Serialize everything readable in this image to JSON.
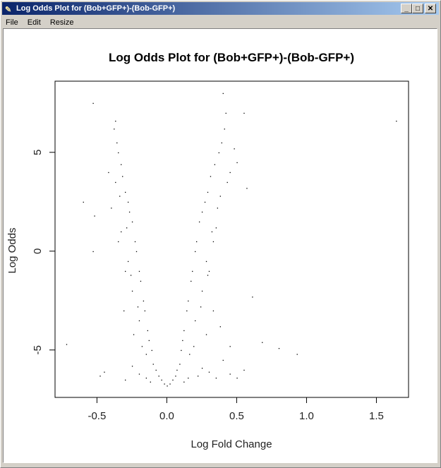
{
  "window": {
    "title": "Log Odds Plot for (Bob+GFP+)-(Bob-GFP+)",
    "icon": "feather-icon",
    "controls": [
      "minimize",
      "maximize",
      "close"
    ],
    "title_gradient": [
      "#0a246a",
      "#a6caf0"
    ]
  },
  "menu": {
    "items": [
      "File",
      "Edit",
      "Resize"
    ]
  },
  "chart_data": {
    "type": "scatter",
    "title": "Log Odds Plot for (Bob+GFP+)-(Bob-GFP+)",
    "xlabel": "Log Fold Change",
    "ylabel": "Log Odds",
    "xlim": [
      -0.8,
      1.73
    ],
    "ylim": [
      -7.4,
      8.6
    ],
    "xticks": [
      "-0.5",
      "0.0",
      "0.5",
      "1.0",
      "1.5"
    ],
    "xtick_values": [
      -0.5,
      0,
      0.5,
      1.0,
      1.5
    ],
    "yticks": [
      "-5",
      "0",
      "5"
    ],
    "ytick_values": [
      -5,
      0,
      5
    ],
    "grid": false,
    "point_color": "#000000",
    "points": [
      [
        0,
        -6.8
      ],
      [
        -0.02,
        -6.7
      ],
      [
        0.02,
        -6.7
      ],
      [
        -0.04,
        -6.5
      ],
      [
        0.04,
        -6.5
      ],
      [
        -0.06,
        -6.3
      ],
      [
        0.06,
        -6.3
      ],
      [
        -0.08,
        -6.0
      ],
      [
        0.07,
        -6.0
      ],
      [
        -0.1,
        -5.7
      ],
      [
        0.09,
        -5.7
      ],
      [
        -0.15,
        -6.4
      ],
      [
        0.15,
        -6.4
      ],
      [
        -0.2,
        -6.2
      ],
      [
        0.22,
        -6.3
      ],
      [
        0.3,
        -6.1
      ],
      [
        0.35,
        -6.4
      ],
      [
        -0.3,
        -6.5
      ],
      [
        0.45,
        -6.2
      ],
      [
        0.5,
        -6.4
      ],
      [
        -0.45,
        -6.1
      ],
      [
        0.12,
        -6.6
      ],
      [
        -0.12,
        -6.6
      ],
      [
        0.25,
        -5.9
      ],
      [
        -0.25,
        -5.8
      ],
      [
        -0.11,
        -5.0
      ],
      [
        -0.13,
        -4.5
      ],
      [
        -0.14,
        -4.0
      ],
      [
        -0.16,
        -3.0
      ],
      [
        -0.17,
        -2.5
      ],
      [
        -0.19,
        -1.5
      ],
      [
        -0.2,
        -1.0
      ],
      [
        -0.22,
        0
      ],
      [
        -0.23,
        0.5
      ],
      [
        -0.25,
        1.5
      ],
      [
        -0.27,
        2.0
      ],
      [
        -0.28,
        2.5
      ],
      [
        -0.3,
        3.0
      ],
      [
        -0.32,
        3.8
      ],
      [
        -0.33,
        4.4
      ],
      [
        -0.35,
        5.0
      ],
      [
        -0.36,
        5.5
      ],
      [
        -0.38,
        6.2
      ],
      [
        -0.2,
        -3.5
      ],
      [
        -0.25,
        -2.0
      ],
      [
        -0.3,
        -1.0
      ],
      [
        -0.35,
        0.5
      ],
      [
        -0.28,
        -0.5
      ],
      [
        -0.33,
        1.0
      ],
      [
        -0.4,
        2.2
      ],
      [
        -0.31,
        -3.0
      ],
      [
        -0.24,
        -4.2
      ],
      [
        -0.15,
        -5.2
      ],
      [
        -0.18,
        -4.8
      ],
      [
        -0.21,
        -2.8
      ],
      [
        -0.26,
        -1.2
      ],
      [
        -0.29,
        1.2
      ],
      [
        -0.34,
        2.8
      ],
      [
        -0.37,
        3.5
      ],
      [
        -0.42,
        4.0
      ],
      [
        0.1,
        -5.0
      ],
      [
        0.11,
        -4.5
      ],
      [
        0.12,
        -4.0
      ],
      [
        0.14,
        -3.0
      ],
      [
        0.15,
        -2.5
      ],
      [
        0.17,
        -1.5
      ],
      [
        0.18,
        -1.0
      ],
      [
        0.2,
        0
      ],
      [
        0.21,
        0.5
      ],
      [
        0.23,
        1.5
      ],
      [
        0.25,
        2.0
      ],
      [
        0.27,
        2.5
      ],
      [
        0.29,
        3.0
      ],
      [
        0.31,
        3.8
      ],
      [
        0.34,
        4.4
      ],
      [
        0.37,
        5.0
      ],
      [
        0.39,
        5.5
      ],
      [
        0.41,
        6.2
      ],
      [
        0.42,
        7.0
      ],
      [
        0.4,
        8.0
      ],
      [
        0.2,
        -3.5
      ],
      [
        0.25,
        -2.0
      ],
      [
        0.3,
        -1.0
      ],
      [
        0.33,
        0.5
      ],
      [
        0.28,
        -0.5
      ],
      [
        0.32,
        1.0
      ],
      [
        0.36,
        2.2
      ],
      [
        0.33,
        -3.0
      ],
      [
        0.28,
        -4.2
      ],
      [
        0.16,
        -5.2
      ],
      [
        0.19,
        -4.8
      ],
      [
        0.24,
        -2.8
      ],
      [
        0.29,
        -1.2
      ],
      [
        0.35,
        1.2
      ],
      [
        0.38,
        2.8
      ],
      [
        0.43,
        3.5
      ],
      [
        0.45,
        4.0
      ],
      [
        0.48,
        5.2
      ],
      [
        0.5,
        4.5
      ],
      [
        0.4,
        -5.5
      ],
      [
        0.45,
        -4.8
      ],
      [
        0.38,
        -3.8
      ],
      [
        1.64,
        6.6
      ],
      [
        -0.53,
        7.5
      ],
      [
        -0.37,
        6.6
      ],
      [
        0.55,
        7.0
      ],
      [
        0.93,
        -5.2
      ],
      [
        0.8,
        -4.9
      ],
      [
        0.68,
        -4.6
      ],
      [
        -0.72,
        -4.7
      ],
      [
        -0.6,
        2.5
      ],
      [
        0.57,
        3.2
      ],
      [
        0.61,
        -2.3
      ],
      [
        -0.52,
        1.8
      ],
      [
        -0.53,
        0.0
      ],
      [
        0.55,
        -6.0
      ],
      [
        -0.48,
        -6.3
      ]
    ]
  }
}
